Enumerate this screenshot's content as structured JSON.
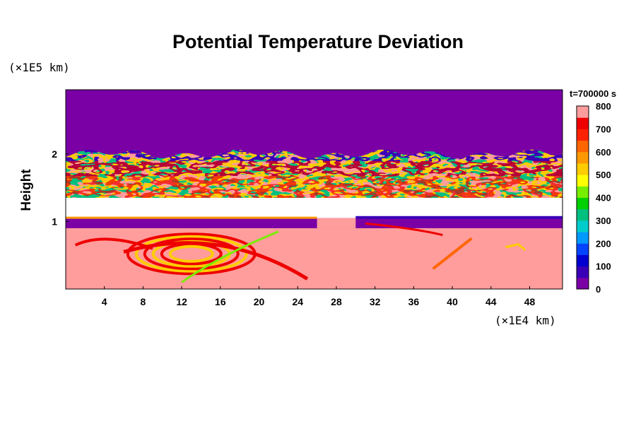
{
  "chart_data": {
    "type": "heatmap",
    "title": "Potential Temperature Deviation",
    "xlabel": "",
    "ylabel": "Height",
    "x_unit": "(×1E4 km)",
    "y_unit": "(×1E5 km)",
    "timestamp": "t=700000 s",
    "xlim": [
      0,
      51.4
    ],
    "ylim": [
      0,
      2.95
    ],
    "x_ticks": [
      4,
      8,
      12,
      16,
      20,
      24,
      28,
      32,
      36,
      40,
      44,
      48
    ],
    "y_ticks": [
      1,
      2
    ],
    "colorbar": {
      "min": 0,
      "max": 800,
      "ticks": [
        0,
        100,
        200,
        300,
        400,
        500,
        600,
        700,
        800
      ],
      "colors": [
        "#7a00a6",
        "#3a00b8",
        "#0000d0",
        "#0044ff",
        "#0099ff",
        "#00cccc",
        "#00c080",
        "#00d000",
        "#77ee00",
        "#ffff00",
        "#ffcc00",
        "#ff9900",
        "#ff6600",
        "#ff2200",
        "#ee0000",
        "#ff9c9c"
      ]
    },
    "layers": [
      {
        "region": "upper",
        "y_range": [
          2.0,
          2.95
        ],
        "value": 0
      },
      {
        "region": "mixed-band",
        "y_range": [
          1.35,
          2.0
        ],
        "value": "mixed 0-800"
      },
      {
        "region": "lower-blue-band",
        "y_range": [
          0.9,
          1.05
        ],
        "value": 0
      },
      {
        "region": "lower",
        "y_range": [
          0,
          0.9
        ],
        "value": 800
      }
    ]
  }
}
